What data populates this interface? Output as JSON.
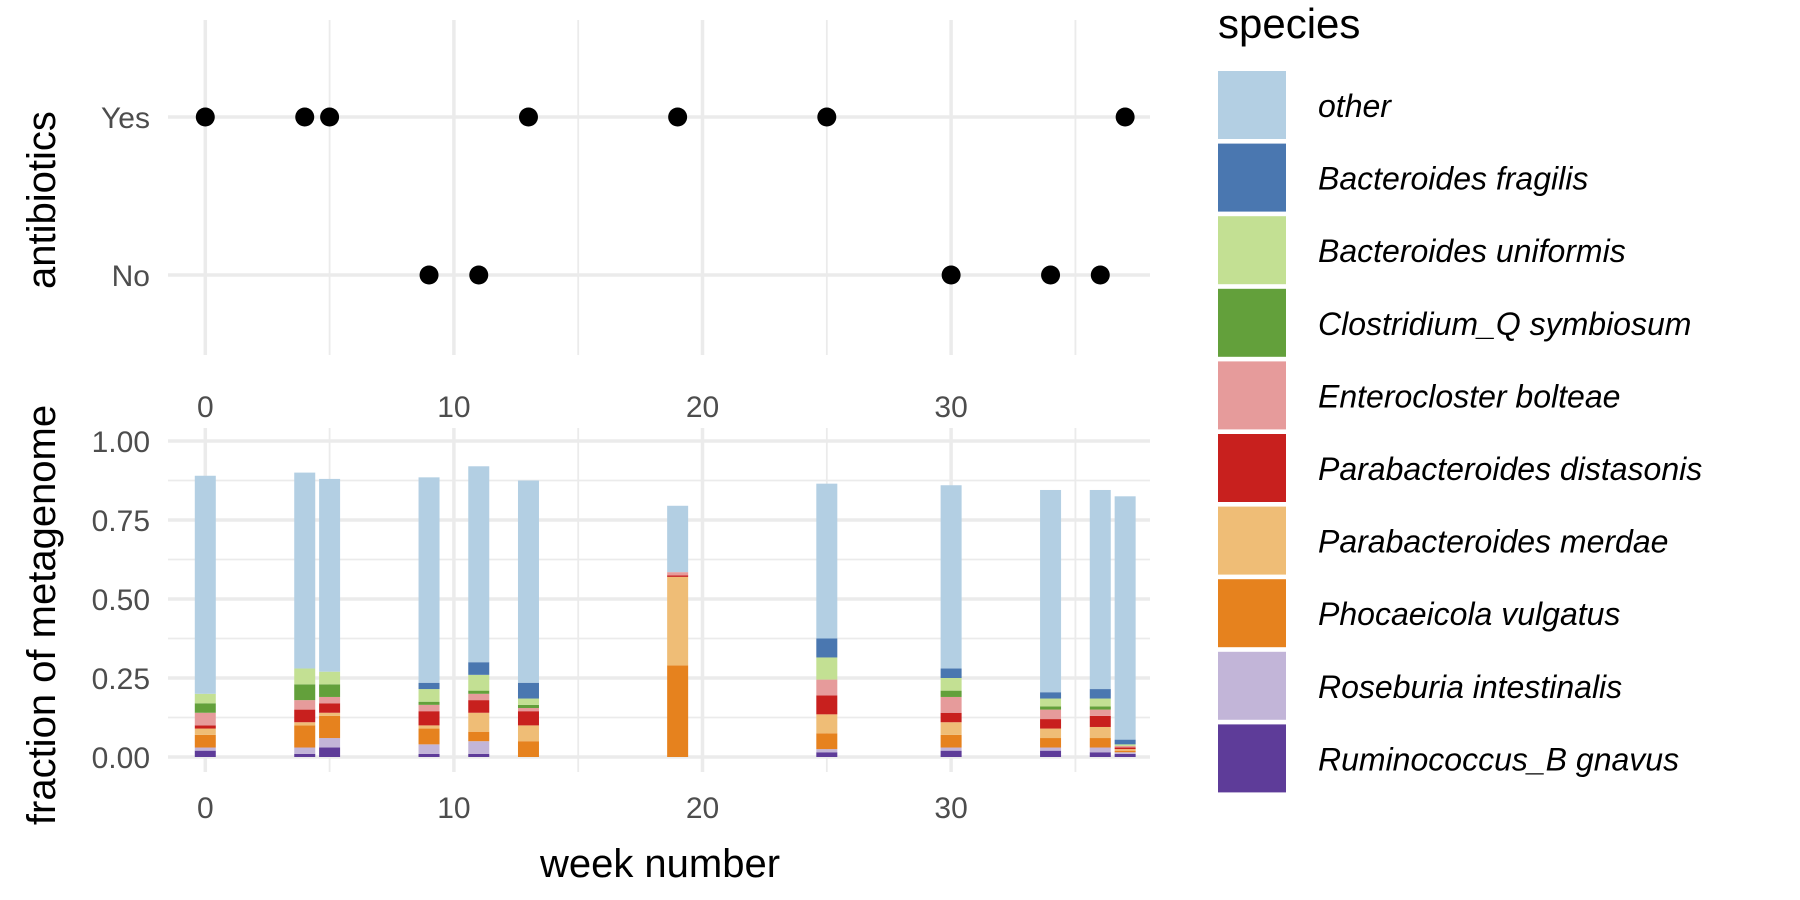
{
  "chart_data": [
    {
      "panel": "top",
      "type": "scatter",
      "ylabel": "antibiotics",
      "xlabel": "",
      "y_categories": [
        "No",
        "Yes"
      ],
      "xlim": [
        -1.5,
        38
      ],
      "x_ticks": [
        0,
        10,
        20,
        30
      ],
      "x_tick_labels": [
        "0",
        "10",
        "20",
        "30"
      ],
      "grid": true,
      "points": [
        {
          "x": 0,
          "y": "Yes"
        },
        {
          "x": 4,
          "y": "Yes"
        },
        {
          "x": 5,
          "y": "Yes"
        },
        {
          "x": 9,
          "y": "No"
        },
        {
          "x": 11,
          "y": "No"
        },
        {
          "x": 13,
          "y": "Yes"
        },
        {
          "x": 19,
          "y": "Yes"
        },
        {
          "x": 25,
          "y": "Yes"
        },
        {
          "x": 30,
          "y": "No"
        },
        {
          "x": 34,
          "y": "No"
        },
        {
          "x": 36,
          "y": "No"
        },
        {
          "x": 37,
          "y": "Yes"
        }
      ]
    },
    {
      "panel": "bottom",
      "type": "bar",
      "stacked": true,
      "xlabel": "week number",
      "ylabel": "fraction of metagenome",
      "xlim": [
        -1.5,
        38
      ],
      "ylim": [
        0,
        1.0
      ],
      "x_ticks": [
        0,
        10,
        20,
        30
      ],
      "x_tick_labels": [
        "0",
        "10",
        "20",
        "30"
      ],
      "y_ticks": [
        0,
        0.25,
        0.5,
        0.75,
        1.0
      ],
      "y_tick_labels": [
        "0.00",
        "0.25",
        "0.50",
        "0.75",
        "1.00"
      ],
      "grid": true,
      "x": [
        0,
        4,
        5,
        9,
        11,
        13,
        19,
        25,
        30,
        34,
        36,
        37
      ],
      "series": [
        {
          "name": "Ruminococcus_B gnavus",
          "color": "#5e3c99",
          "values": [
            0.02,
            0.01,
            0.03,
            0.01,
            0.01,
            0.0,
            0.0,
            0.015,
            0.02,
            0.02,
            0.015,
            0.01
          ]
        },
        {
          "name": "Roseburia intestinalis",
          "color": "#c2b5d8",
          "values": [
            0.01,
            0.02,
            0.03,
            0.03,
            0.04,
            0.0,
            0.0,
            0.01,
            0.01,
            0.01,
            0.015,
            0.005
          ]
        },
        {
          "name": "Phocaeicola vulgatus",
          "color": "#e6821e",
          "values": [
            0.04,
            0.07,
            0.07,
            0.05,
            0.03,
            0.05,
            0.29,
            0.05,
            0.04,
            0.03,
            0.03,
            0.005
          ]
        },
        {
          "name": "Parabacteroides merdae",
          "color": "#efbd76",
          "values": [
            0.02,
            0.01,
            0.01,
            0.01,
            0.06,
            0.05,
            0.28,
            0.06,
            0.04,
            0.03,
            0.035,
            0.005
          ]
        },
        {
          "name": "Parabacteroides distasonis",
          "color": "#c8201e",
          "values": [
            0.01,
            0.04,
            0.03,
            0.045,
            0.04,
            0.045,
            0.005,
            0.06,
            0.03,
            0.03,
            0.035,
            0.005
          ]
        },
        {
          "name": "Enterocloster bolteae",
          "color": "#e69b9b",
          "values": [
            0.04,
            0.03,
            0.02,
            0.02,
            0.02,
            0.01,
            0.01,
            0.05,
            0.05,
            0.03,
            0.02,
            0.005
          ]
        },
        {
          "name": "Clostridium_Q symbiosum",
          "color": "#63a03b",
          "values": [
            0.03,
            0.05,
            0.04,
            0.01,
            0.01,
            0.01,
            0.0,
            0.0,
            0.02,
            0.01,
            0.01,
            0.0
          ]
        },
        {
          "name": "Bacteroides uniformis",
          "color": "#c3e093",
          "values": [
            0.03,
            0.05,
            0.04,
            0.04,
            0.05,
            0.02,
            0.0,
            0.07,
            0.04,
            0.025,
            0.025,
            0.005
          ]
        },
        {
          "name": "Bacteroides fragilis",
          "color": "#4a77b0",
          "values": [
            0.0,
            0.0,
            0.0,
            0.02,
            0.04,
            0.05,
            0.0,
            0.06,
            0.03,
            0.02,
            0.03,
            0.015
          ]
        },
        {
          "name": "other",
          "color": "#b3cfe3",
          "values": [
            0.69,
            0.62,
            0.61,
            0.65,
            0.62,
            0.64,
            0.21,
            0.49,
            0.58,
            0.64,
            0.63,
            0.77
          ]
        }
      ]
    }
  ],
  "legend": {
    "title": "species",
    "placement": "right",
    "items": [
      {
        "label": "other",
        "color": "#b3cfe3"
      },
      {
        "label": "Bacteroides fragilis",
        "color": "#4a77b0"
      },
      {
        "label": "Bacteroides uniformis",
        "color": "#c3e093"
      },
      {
        "label": "Clostridium_Q symbiosum",
        "color": "#63a03b"
      },
      {
        "label": "Enterocloster bolteae",
        "color": "#e69b9b"
      },
      {
        "label": "Parabacteroides distasonis",
        "color": "#c8201e"
      },
      {
        "label": "Parabacteroides merdae",
        "color": "#efbd76"
      },
      {
        "label": "Phocaeicola vulgatus",
        "color": "#e6821e"
      },
      {
        "label": "Roseburia intestinalis",
        "color": "#c2b5d8"
      },
      {
        "label": "Ruminococcus_B gnavus",
        "color": "#5e3c99"
      }
    ]
  }
}
